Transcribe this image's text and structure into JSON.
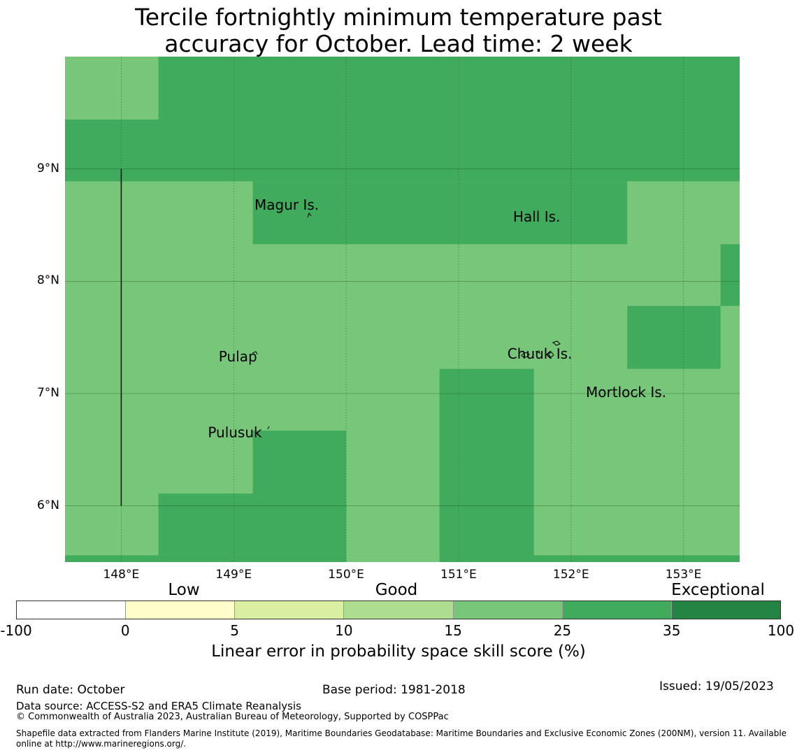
{
  "title_line1": "Tercile fortnightly minimum temperature past",
  "title_line2": "accuracy for October. Lead time: 2 week",
  "map": {
    "lon_range": [
      147.5,
      153.5
    ],
    "lat_range": [
      5.5,
      10.0
    ],
    "colors": {
      "c15_25": "#78c679",
      "c25_35": "#41ab5d",
      "gridline": "#1a4d1a",
      "coast": "#000000"
    },
    "lat_ticks": [
      {
        "value": 9,
        "label": "9°N"
      },
      {
        "value": 8,
        "label": "8°N"
      },
      {
        "value": 7,
        "label": "7°N"
      },
      {
        "value": 6,
        "label": "6°N"
      }
    ],
    "lon_ticks": [
      {
        "value": 148,
        "label": "148°E"
      },
      {
        "value": 149,
        "label": "149°E"
      },
      {
        "value": 150,
        "label": "150°E"
      },
      {
        "value": 151,
        "label": "151°E"
      },
      {
        "value": 152,
        "label": "152°E"
      },
      {
        "value": 153,
        "label": "153°E"
      }
    ],
    "boundary_line": {
      "lon": 148.0,
      "lat_from": 6.0,
      "lat_to": 9.0
    },
    "islands": [
      {
        "name": "Magur Is.",
        "lon": 149.67,
        "lat": 8.55
      },
      {
        "name": "Hall Is.",
        "lon": 151.97,
        "lat": 8.5
      },
      {
        "name": "Pulap",
        "lon": 149.19,
        "lat": 7.25
      },
      {
        "name": "Chuuk Is.",
        "lon": 151.82,
        "lat": 7.25
      },
      {
        "name": "Mortlock Is.",
        "lon": 152.58,
        "lat": 6.92
      },
      {
        "name": "Pulusuk",
        "lon": 149.33,
        "lat": 6.58
      }
    ],
    "cells_25_35": [
      {
        "lon": [
          148.33,
          153.5
        ],
        "lat": [
          9.44,
          10.0
        ]
      },
      {
        "lon": [
          147.5,
          153.5
        ],
        "lat": [
          8.89,
          9.44
        ]
      },
      {
        "lon": [
          149.17,
          152.5
        ],
        "lat": [
          8.33,
          8.89
        ]
      },
      {
        "lon": [
          153.33,
          153.5
        ],
        "lat": [
          7.78,
          8.33
        ]
      },
      {
        "lon": [
          152.5,
          153.33
        ],
        "lat": [
          7.22,
          7.78
        ]
      },
      {
        "lon": [
          150.83,
          151.67
        ],
        "lat": [
          5.5,
          7.22
        ]
      },
      {
        "lon": [
          149.17,
          150.0
        ],
        "lat": [
          6.11,
          6.67
        ]
      },
      {
        "lon": [
          148.33,
          150.0
        ],
        "lat": [
          5.56,
          6.11
        ]
      },
      {
        "lon": [
          147.5,
          153.5
        ],
        "lat": [
          5.5,
          5.56
        ]
      }
    ],
    "cells_15_25": [
      {
        "lon": [
          150.0,
          150.83
        ],
        "lat": [
          5.5,
          5.56
        ]
      }
    ]
  },
  "colorbar": {
    "categories": [
      "Low",
      "Good",
      "Exceptional"
    ],
    "colors": [
      "#ffffff",
      "#ffffcc",
      "#d9f0a3",
      "#addd8e",
      "#78c679",
      "#41ab5d",
      "#238443"
    ],
    "ticks": [
      "-100",
      "0",
      "5",
      "10",
      "15",
      "25",
      "35",
      "100"
    ],
    "label": "Linear error in probability space skill score (%)"
  },
  "footer": {
    "run_date": "Run date: October",
    "base_period": "Base period: 1981-2018",
    "issued": "Issued: 19/05/2023",
    "data_source": "Data source: ACCESS-S2 and ERA5 Climate Reanalysis",
    "copyright": "© Commonwealth of Australia 2023, Australian Bureau of Meteorology, Supported by COSPPac",
    "shapefile_line1": "Shapefile data extracted from Flanders Marine Institute (2019), Maritime Boundaries Geodatabase: Maritime Boundaries and Exclusive Economic Zones (200NM), version 11. Available",
    "shapefile_line2": "online at http://www.marineregions.org/."
  }
}
